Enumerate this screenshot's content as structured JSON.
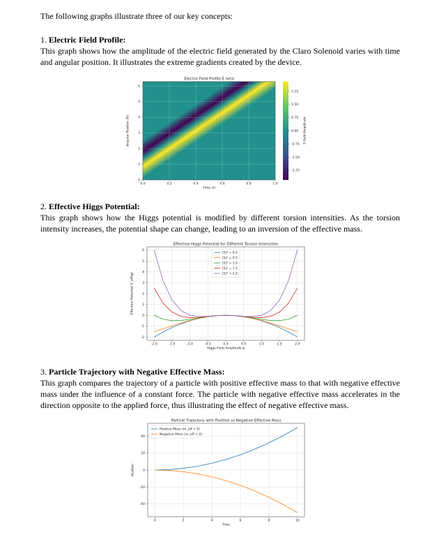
{
  "intro": "The following graphs illustrate three of our key concepts:",
  "sections": [
    {
      "number": "1.",
      "heading": "Electric Field Profile:",
      "paragraph": "This graph shows how the amplitude of the electric field generated by the Claro Solenoid varies with time and angular position. It illustrates the extreme gradients created by the device."
    },
    {
      "number": "2.",
      "heading": "Effective Higgs Potential:",
      "paragraph": "This graph shows how the Higgs potential is modified by different torsion intensities. As the torsion intensity increases, the potential shape can change, leading to an inversion of the effective mass."
    },
    {
      "number": "3.",
      "heading": "Particle Trajectory with Negative Effective Mass:",
      "paragraph": "This graph compares the trajectory of a particle with positive effective mass to that with negative effective mass under the influence of a constant force. The particle with negative effective mass accelerates in the direction opposite to the applied force, thus illustrating the effect of negative effective mass."
    }
  ],
  "chart_data": [
    {
      "type": "heatmap",
      "title": "Electric Field Profile E heta",
      "xlabel": "Time (t)",
      "ylabel": "Angular Position (θ)",
      "xlim": [
        0,
        1
      ],
      "xticks": [
        {
          "value": 0,
          "label": "0.0"
        },
        0.2,
        0.4,
        0.6,
        0.8,
        {
          "value": 1,
          "label": "1.0"
        }
      ],
      "ylim": [
        0,
        6.28
      ],
      "yticks": [
        0,
        1,
        2,
        3,
        4,
        5,
        6
      ],
      "zlim": [
        -2.8,
        2.8
      ],
      "colorbar_label": "E-field Amplitude",
      "colorbar_ticks": [
        2.25,
        {
          "value": 1.5,
          "label": "1.50"
        },
        0.75,
        {
          "value": 0,
          "label": "0.00"
        },
        -0.75,
        {
          "value": -1.5,
          "label": "-1.50"
        },
        -2.25
      ],
      "grid": true
    },
    {
      "type": "line",
      "title": "Effective Higgs Potential for Different Torsion Intensities",
      "xlabel": "Higgs Field Amplitude φ",
      "ylabel": "Effective Potential V_eff(φ)",
      "xlim": [
        -2.2,
        2.2
      ],
      "xticks": [
        {
          "value": -2,
          "label": "-2.0"
        },
        -1.5,
        {
          "value": -1,
          "label": "-1.0"
        },
        -0.5,
        {
          "value": 0,
          "label": "0.0"
        },
        0.5,
        {
          "value": 1,
          "label": "1.0"
        },
        1.5,
        {
          "value": 2,
          "label": "2.0"
        }
      ],
      "ylim": [
        -2.3,
        6.3
      ],
      "yticks": [
        -2,
        -1,
        0,
        1,
        2,
        3,
        4,
        5,
        6
      ],
      "grid": true,
      "legend": "upper center",
      "x": [
        -2,
        -1.75,
        -1.5,
        -1.25,
        -1,
        -0.75,
        -0.5,
        -0.25,
        0,
        0.25,
        0.5,
        0.75,
        1,
        1.25,
        1.5,
        1.75,
        2
      ],
      "series": [
        {
          "name": "|S|² = 0.0",
          "color": "#1f77b4",
          "values": [
            -2,
            -1.531,
            -1.125,
            -0.781,
            -0.5,
            -0.281,
            -0.125,
            -0.031,
            0,
            -0.031,
            -0.125,
            -0.281,
            -0.5,
            -0.781,
            -1.125,
            -1.531,
            -2
          ]
        },
        {
          "name": "|S|² = 0.5",
          "color": "#ff7f0e",
          "values": [
            -1.5,
            -1.238,
            -0.967,
            -0.705,
            -0.469,
            -0.271,
            -0.123,
            -0.031,
            0,
            -0.031,
            -0.123,
            -0.271,
            -0.469,
            -0.705,
            -0.967,
            -1.238,
            -1.5
          ]
        },
        {
          "name": "|S|² = 1.0",
          "color": "#2ca02c",
          "values": [
            0,
            -0.359,
            -0.492,
            -0.476,
            -0.375,
            -0.241,
            -0.117,
            -0.031,
            0,
            -0.031,
            -0.117,
            -0.241,
            -0.375,
            -0.476,
            -0.492,
            -0.359,
            0
          ]
        },
        {
          "name": "|S|² = 1.5",
          "color": "#d62728",
          "values": [
            2.5,
            1.107,
            0.299,
            -0.094,
            -0.219,
            -0.192,
            -0.107,
            -0.03,
            0,
            -0.03,
            -0.107,
            -0.192,
            -0.219,
            -0.094,
            0.299,
            1.107,
            2.5
          ]
        },
        {
          "name": "|S|² = 2.0",
          "color": "#9467bd",
          "values": [
            6,
            3.158,
            1.406,
            0.44,
            0,
            -0.123,
            -0.094,
            -0.029,
            0,
            -0.029,
            -0.094,
            -0.123,
            0,
            0.44,
            1.406,
            3.158,
            6
          ]
        }
      ]
    },
    {
      "type": "line",
      "title": "Particle Trajectory with Positive vs Negative Effective Mass",
      "xlabel": "Time",
      "ylabel": "Position",
      "xlim": [
        -0.5,
        10.5
      ],
      "xticks": [
        0,
        2,
        4,
        6,
        8,
        10
      ],
      "ylim": [
        -55,
        55
      ],
      "yticks": [
        -40,
        -20,
        0,
        20,
        40
      ],
      "grid": true,
      "legend": "upper left",
      "x": [
        0,
        1,
        2,
        3,
        4,
        5,
        6,
        7,
        8,
        9,
        10
      ],
      "series": [
        {
          "name": "Positive Mass (m_eff > 0)",
          "color": "#1f77b4",
          "values": [
            0,
            0.5,
            2,
            4.5,
            8,
            12.5,
            18,
            24.5,
            32,
            40.5,
            50
          ]
        },
        {
          "name": "Negative Mass (m_eff < 0)",
          "color": "#ff7f0e",
          "values": [
            0,
            -0.5,
            -2,
            -4.5,
            -8,
            -12.5,
            -18,
            -24.5,
            -32,
            -40.5,
            -50
          ]
        }
      ]
    }
  ]
}
